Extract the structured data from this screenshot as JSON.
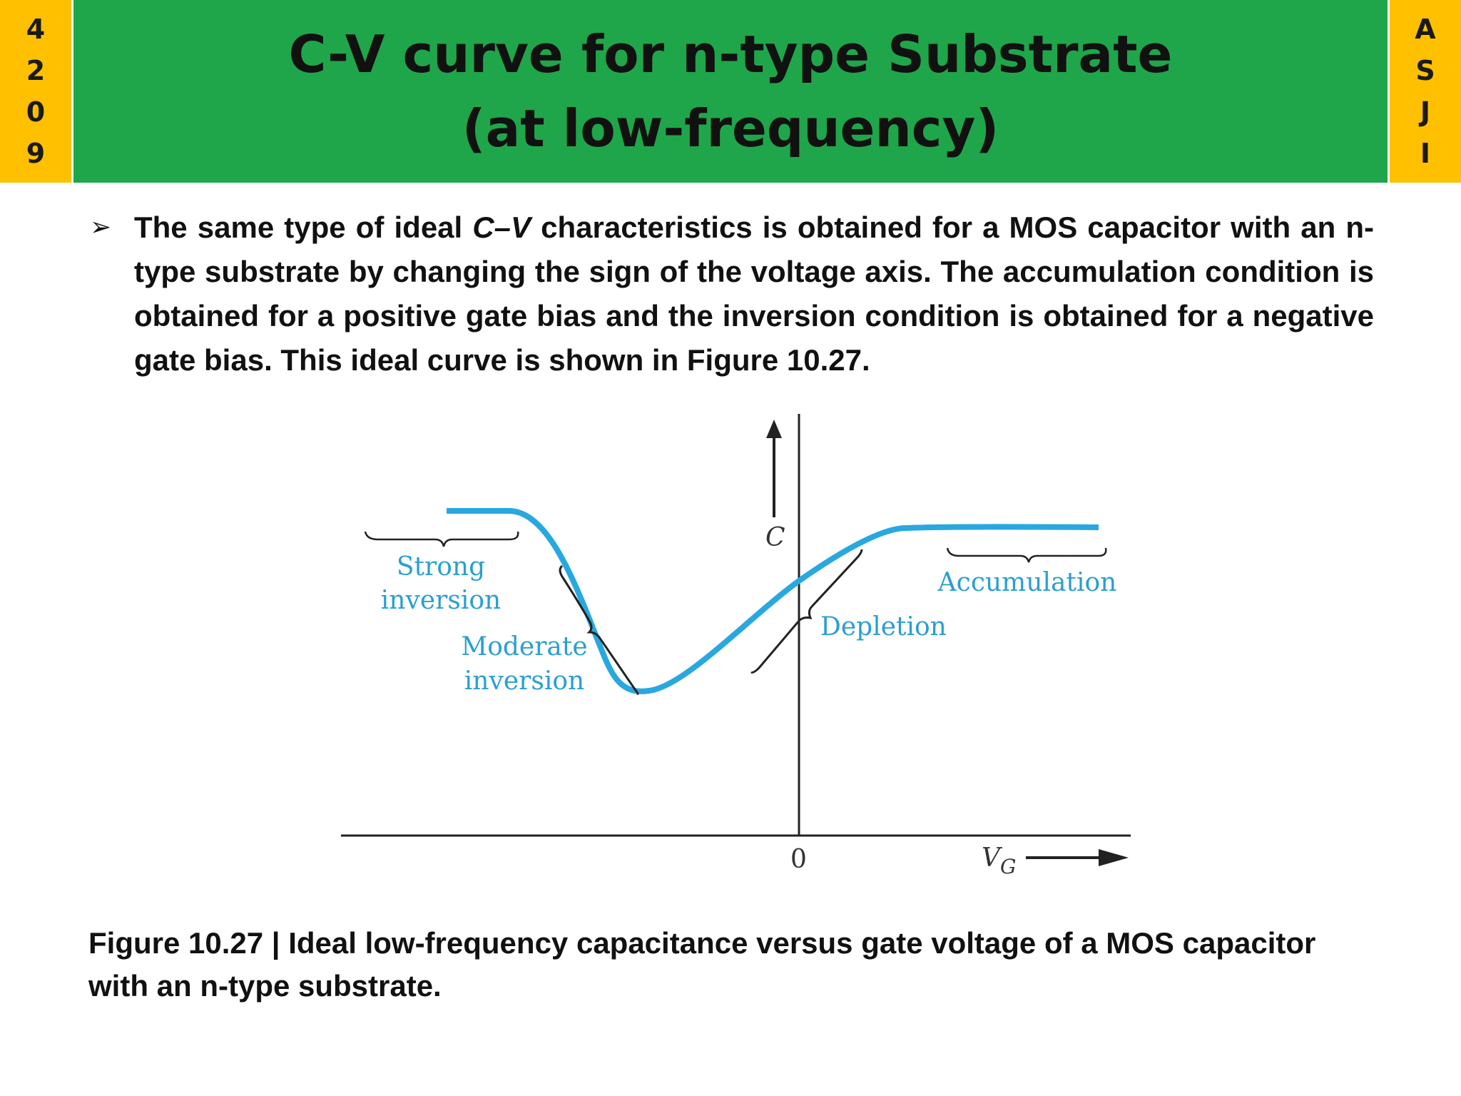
{
  "sidebar_left": {
    "chars": [
      "4",
      "2",
      "0",
      "9"
    ]
  },
  "sidebar_right": {
    "chars": [
      "A",
      "S",
      "J",
      "I"
    ]
  },
  "header": {
    "title_line1": "C-V curve for n-type Substrate",
    "title_line2": "(at low-frequency)"
  },
  "bullet": {
    "marker": "➢",
    "part1": "The same type of ideal ",
    "italic": "C–V",
    "part2": " characteristics is obtained for a MOS capacitor with an n-type substrate by changing the sign of the voltage axis. The accumulation condition is obtained for a positive gate bias and the inversion condition is obtained for a negative gate bias. This ideal curve is shown in Figure 10.27."
  },
  "diagram": {
    "y_axis_label": "C",
    "x_axis_label_main": "V",
    "x_axis_label_sub": "G",
    "origin_label": "0",
    "regions": {
      "strong_inversion_line1": "Strong",
      "strong_inversion_line2": "inversion",
      "moderate_inversion_line1": "Moderate",
      "moderate_inversion_line2": "inversion",
      "depletion": "Depletion",
      "accumulation": "Accumulation"
    },
    "curve_color": "#29a8e0",
    "label_color": "#2a9fd0"
  },
  "caption": {
    "line1": "Figure 10.27 | Ideal low-frequency capacitance versus gate voltage of a MOS capacitor",
    "line2": "with an n-type substrate."
  }
}
